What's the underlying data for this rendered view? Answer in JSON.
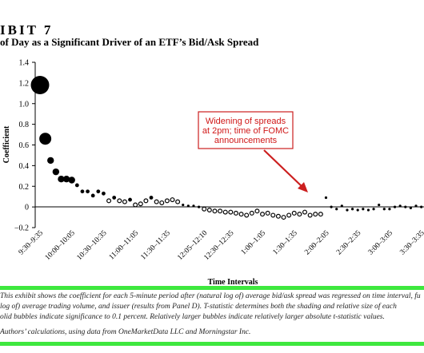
{
  "header": {
    "exhibit_label": "IBIT 7",
    "title": "of Day as a Significant Driver of an ETF’s Bid/Ask Spread"
  },
  "chart_data": {
    "type": "scatter",
    "title": "of Day as a Significant Driver of an ETF’s Bid/Ask Spread",
    "xlabel": "Time Intervals",
    "ylabel": "Coefficient",
    "ylim": [
      -0.2,
      1.4
    ],
    "yticks": [
      1.4,
      1.2,
      1.0,
      0.8,
      0.6,
      0.4,
      0.2,
      0,
      -0.2
    ],
    "ytick_labels": [
      "1.4",
      "1.2",
      "1.0",
      "0.8",
      "0.6",
      "0.4",
      "0.2",
      "0",
      "−0.2"
    ],
    "xtick_labels": [
      "9:30–9:35",
      "10:00–10:05",
      "10:30–10:35",
      "11:00–11:05",
      "11:30–11:35",
      "12:05–12:10",
      "12:30–12:35",
      "1:00–1:05",
      "1:30–1:35",
      "2:00–2:05",
      "2:30–2:35",
      "3:00–3:05",
      "3:30–3:35"
    ],
    "xtick_index": [
      0,
      6,
      12,
      18,
      24,
      31,
      36,
      42,
      48,
      54,
      60,
      66,
      72
    ],
    "series": [
      {
        "values": [
          1.18,
          0.66,
          0.45,
          0.34,
          0.27,
          0.27,
          0.26,
          0.21,
          0.15,
          0.15,
          0.11,
          0.15,
          0.13,
          0.06,
          0.09,
          0.06,
          0.05,
          0.07,
          0.02,
          0.03,
          0.06,
          0.09,
          0.05,
          0.04,
          0.06,
          0.07,
          0.05,
          0.02,
          0.01,
          0.01,
          0.0,
          -0.02,
          -0.03,
          -0.04,
          -0.04,
          -0.05,
          -0.05,
          -0.06,
          -0.07,
          -0.08,
          -0.06,
          -0.04,
          -0.07,
          -0.06,
          -0.08,
          -0.09,
          -0.1,
          -0.08,
          -0.06,
          -0.07,
          -0.05,
          -0.08,
          -0.07,
          -0.07,
          0.09,
          0.0,
          -0.02,
          0.01,
          -0.03,
          -0.02,
          -0.03,
          -0.02,
          -0.03,
          -0.02,
          0.02,
          -0.02,
          -0.02,
          0.0,
          0.01,
          0.0,
          -0.01,
          0.01,
          0.0,
          0.0,
          0.04
        ],
        "significance": [
          6,
          4,
          3,
          3,
          3,
          3,
          3,
          2,
          2,
          2,
          2,
          2,
          2,
          2,
          2,
          2,
          2,
          2,
          2,
          2,
          2,
          2,
          2,
          2,
          2,
          2,
          2,
          1,
          1,
          1,
          1,
          2,
          2,
          2,
          2,
          2,
          2,
          2,
          2,
          2,
          2,
          2,
          2,
          2,
          2,
          2,
          2,
          2,
          2,
          2,
          2,
          2,
          2,
          2,
          1,
          1,
          1,
          1,
          1,
          1,
          1,
          1,
          1,
          1,
          1,
          1,
          1,
          1,
          1,
          1,
          1,
          1,
          1,
          1,
          2
        ],
        "solid": [
          true,
          true,
          true,
          true,
          true,
          true,
          true,
          true,
          true,
          true,
          true,
          true,
          true,
          false,
          true,
          false,
          false,
          true,
          false,
          false,
          false,
          true,
          false,
          false,
          false,
          false,
          false,
          true,
          true,
          true,
          true,
          false,
          false,
          false,
          false,
          false,
          false,
          false,
          false,
          false,
          false,
          false,
          false,
          false,
          false,
          false,
          false,
          false,
          false,
          false,
          false,
          false,
          false,
          false,
          true,
          true,
          true,
          true,
          true,
          true,
          true,
          true,
          true,
          true,
          true,
          true,
          true,
          true,
          true,
          true,
          true,
          true,
          true,
          true,
          true
        ]
      }
    ],
    "grid": false,
    "annotation": {
      "text_lines": [
        "Widening of spreads",
        "at 2pm; time of FOMC",
        "announcements"
      ],
      "box_color": "#ffffff",
      "border_color": "#cc1f1f",
      "text_color": "#d01818",
      "arrow_color": "#cc1f1f"
    },
    "marker_color": "#000000"
  },
  "notes": {
    "line1": "This exhibit shows the coefficient for each 5-minute period after (natural log of) average bid/ask spread was regressed on time interval, fu",
    "line2": "log of) average trading volume, and issuer (results from Panel D). T-statistic determines both the shading and relative size of each",
    "line3": "olid bubbles indicate significance to 0.1 percent. Relatively larger bubbles indicate relatively larger absolute t-statistic values.",
    "source": "Authors’ calculations, using data from OneMarketData LLC and Morningstar Inc."
  },
  "colors": {
    "highlight_band": "#3ee83e",
    "annotation_red": "#cc1f1f"
  }
}
